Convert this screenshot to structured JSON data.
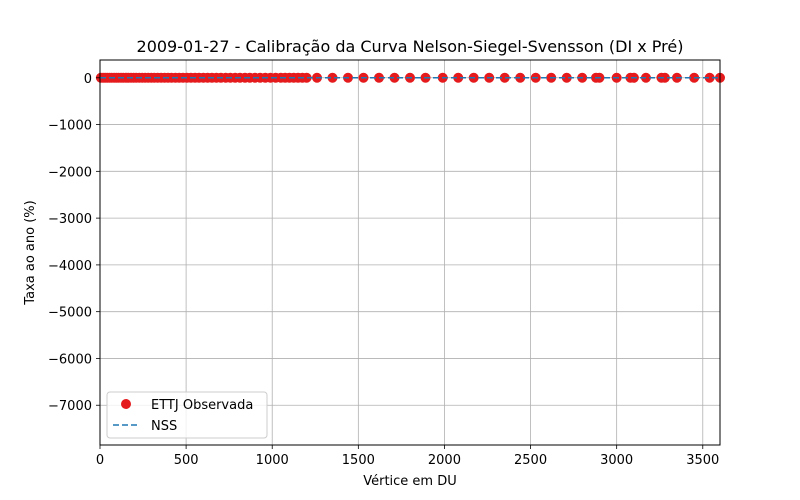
{
  "chart_data": {
    "type": "scatter",
    "title": "2009-01-27 - Calibração da Curva Nelson-Siegel-Svensson (DI x Pré)",
    "xlabel": "Vértice em DU",
    "ylabel": "Taxa ao ano (%)",
    "xlim": [
      0,
      3600
    ],
    "ylim": [
      -7850,
      380
    ],
    "xticks": [
      0,
      500,
      1000,
      1500,
      2000,
      2500,
      3000,
      3500
    ],
    "yticks": [
      0,
      -1000,
      -2000,
      -3000,
      -4000,
      -5000,
      -6000,
      -7000
    ],
    "xtick_labels": [
      "0",
      "500",
      "1000",
      "1500",
      "2000",
      "2500",
      "3000",
      "3500"
    ],
    "ytick_labels": [
      "0",
      "−1000",
      "−2000",
      "−3000",
      "−4000",
      "−5000",
      "−6000",
      "−7000"
    ],
    "grid": true,
    "legend_position": "lower-left",
    "series": [
      {
        "name": "ETTJ Observada",
        "kind": "scatter",
        "color": "#e41a1c",
        "x": [
          5,
          18,
          30,
          42,
          55,
          68,
          82,
          95,
          108,
          122,
          135,
          150,
          165,
          180,
          195,
          210,
          228,
          245,
          262,
          280,
          298,
          315,
          335,
          355,
          375,
          395,
          415,
          438,
          460,
          482,
          505,
          528,
          552,
          575,
          600,
          625,
          650,
          676,
          702,
          730,
          757,
          785,
          813,
          842,
          870,
          900,
          930,
          960,
          990,
          1020,
          1050,
          1075,
          1100,
          1125,
          1150,
          1175,
          1200,
          1260,
          1350,
          1440,
          1530,
          1620,
          1710,
          1800,
          1890,
          1990,
          2080,
          2170,
          2260,
          2350,
          2440,
          2530,
          2620,
          2710,
          2800,
          2880,
          2900,
          3000,
          3080,
          3100,
          3170,
          3260,
          3280,
          3350,
          3450,
          3540,
          3600
        ],
        "y": [
          0,
          0,
          0,
          0,
          0,
          0,
          0,
          0,
          0,
          0,
          0,
          0,
          0,
          0,
          0,
          0,
          0,
          0,
          0,
          0,
          0,
          0,
          0,
          0,
          0,
          0,
          0,
          0,
          0,
          0,
          0,
          0,
          0,
          0,
          0,
          0,
          0,
          0,
          0,
          0,
          0,
          0,
          0,
          0,
          0,
          0,
          0,
          0,
          0,
          0,
          0,
          0,
          0,
          0,
          0,
          0,
          0,
          0,
          0,
          0,
          0,
          0,
          0,
          0,
          0,
          0,
          0,
          0,
          0,
          0,
          0,
          0,
          0,
          0,
          0,
          0,
          0,
          0,
          0,
          0,
          0,
          0,
          0,
          0,
          0,
          0,
          0
        ]
      },
      {
        "name": "NSS",
        "kind": "line-dashed",
        "color": "#1f77b4",
        "x": [
          0,
          3600
        ],
        "y": [
          0,
          0
        ]
      }
    ]
  }
}
